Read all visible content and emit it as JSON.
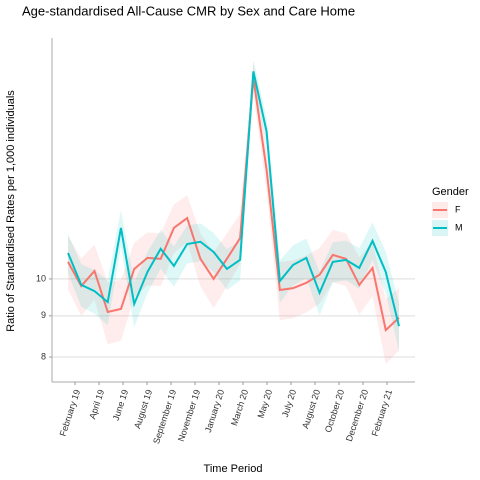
{
  "chart_data": {
    "type": "line",
    "title": "Age-standardised All-Cause CMR by Sex and Care Home",
    "xlabel": "Time Period",
    "ylabel": "Ratio of Standardised Rates per 1,000 individuals",
    "x_tick_labels": [
      "February 19",
      "April 19",
      "June 19",
      "August 19",
      "September 19",
      "November 19",
      "January 20",
      "March 20",
      "May 20",
      "July 20",
      "August 20",
      "October 20",
      "December 20",
      "February 21"
    ],
    "legend_title": "Gender",
    "log_y": true,
    "grid": true,
    "ylim": [
      7.45,
      19.9
    ],
    "yticks": [
      8,
      9,
      10
    ],
    "series": [
      {
        "name": "F",
        "color": "#f8766d",
        "values": [
          10.5,
          9.8,
          10.23,
          9.1,
          9.18,
          10.29,
          10.62,
          10.59,
          11.57,
          11.9,
          10.59,
          10.0,
          10.59,
          11.24,
          17.76,
          13.66,
          9.69,
          9.74,
          9.89,
          10.12,
          10.71,
          10.59,
          9.83,
          10.32,
          8.64,
          8.95
        ],
        "upper": [
          11.3,
          10.6,
          11.03,
          9.9,
          9.98,
          11.09,
          11.42,
          11.39,
          12.37,
          12.7,
          11.39,
          10.8,
          11.39,
          12.04,
          18.56,
          14.46,
          10.49,
          10.54,
          10.69,
          10.92,
          11.51,
          11.39,
          10.63,
          11.12,
          9.44,
          9.75
        ],
        "lower": [
          9.7,
          9.0,
          9.43,
          8.3,
          8.38,
          9.49,
          9.82,
          9.79,
          10.77,
          11.1,
          9.79,
          9.2,
          9.79,
          10.44,
          16.96,
          12.86,
          8.89,
          8.94,
          9.09,
          9.32,
          9.91,
          9.79,
          9.03,
          9.52,
          7.84,
          8.15
        ]
      },
      {
        "name": "M",
        "color": "#00bfc4",
        "values": [
          10.77,
          9.83,
          9.66,
          9.36,
          11.57,
          9.31,
          10.2,
          10.9,
          10.38,
          11.05,
          11.12,
          10.8,
          10.29,
          10.56,
          18.09,
          15.23,
          9.94,
          10.41,
          10.62,
          9.61,
          10.5,
          10.56,
          10.32,
          11.15,
          10.2,
          8.74
        ],
        "upper": [
          11.37,
          10.43,
          10.26,
          9.96,
          12.17,
          9.91,
          10.8,
          11.5,
          10.98,
          11.65,
          11.72,
          11.4,
          10.89,
          11.16,
          18.69,
          15.83,
          10.54,
          11.01,
          11.22,
          10.21,
          11.1,
          11.16,
          10.92,
          11.75,
          10.8,
          9.34
        ],
        "lower": [
          10.17,
          9.23,
          9.06,
          8.76,
          10.97,
          8.71,
          9.6,
          10.3,
          9.78,
          10.45,
          10.52,
          10.2,
          9.69,
          9.96,
          17.49,
          14.63,
          9.34,
          9.81,
          10.02,
          9.01,
          9.9,
          9.96,
          9.72,
          10.55,
          9.6,
          8.14
        ]
      }
    ]
  }
}
